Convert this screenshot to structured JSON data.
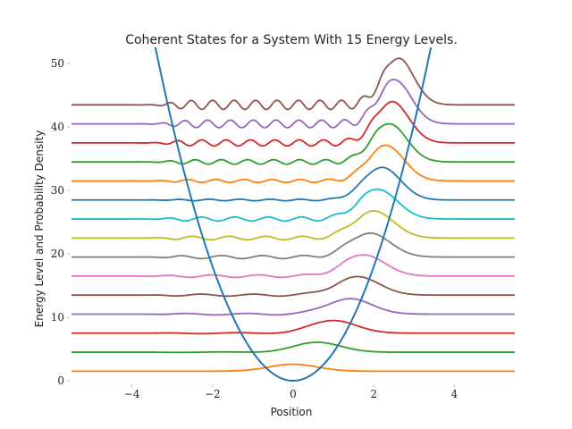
{
  "chart_data": {
    "type": "line",
    "title": "Coherent States for a System With 15 Energy Levels.",
    "xlabel": "Position",
    "ylabel": "Energy Level and Probability Density",
    "xlim": [
      -5.5,
      5.5
    ],
    "ylim": [
      0,
      52
    ],
    "x_ticks": [
      -4,
      -2,
      0,
      2,
      4
    ],
    "x_tick_labels": [
      "−4",
      "−2",
      "0",
      "2",
      "4"
    ],
    "y_ticks": [
      0,
      10,
      20,
      30,
      40,
      50
    ],
    "y_tick_labels": [
      "0",
      "10",
      "20",
      "30",
      "40",
      "50"
    ],
    "grid": false,
    "potential": {
      "form": "y = 4.5 * x^2",
      "color": "#1f77b4"
    },
    "series": [
      {
        "level": 0,
        "offset": 1.5,
        "center": 0.0,
        "color": "#ff7f0e"
      },
      {
        "level": 1,
        "offset": 4.5,
        "center": 0.6,
        "color": "#2ca02c"
      },
      {
        "level": 2,
        "offset": 7.5,
        "center": 1.0,
        "color": "#d62728"
      },
      {
        "level": 3,
        "offset": 10.5,
        "center": 1.4,
        "color": "#9467bd"
      },
      {
        "level": 4,
        "offset": 13.5,
        "center": 1.6,
        "color": "#8c564b"
      },
      {
        "level": 5,
        "offset": 16.5,
        "center": 1.75,
        "color": "#e377c2"
      },
      {
        "level": 6,
        "offset": 19.5,
        "center": 1.9,
        "color": "#7f7f7f"
      },
      {
        "level": 7,
        "offset": 22.5,
        "center": 2.0,
        "color": "#bcbd22"
      },
      {
        "level": 8,
        "offset": 25.5,
        "center": 2.1,
        "color": "#17becf"
      },
      {
        "level": 9,
        "offset": 28.5,
        "center": 2.2,
        "color": "#1f77b4"
      },
      {
        "level": 10,
        "offset": 31.5,
        "center": 2.3,
        "color": "#ff7f0e"
      },
      {
        "level": 11,
        "offset": 34.5,
        "center": 2.38,
        "color": "#2ca02c"
      },
      {
        "level": 12,
        "offset": 37.5,
        "center": 2.45,
        "color": "#d62728"
      },
      {
        "level": 13,
        "offset": 40.5,
        "center": 2.52,
        "color": "#9467bd"
      },
      {
        "level": 14,
        "offset": 43.5,
        "center": 2.6,
        "color": "#8c564b"
      }
    ]
  }
}
